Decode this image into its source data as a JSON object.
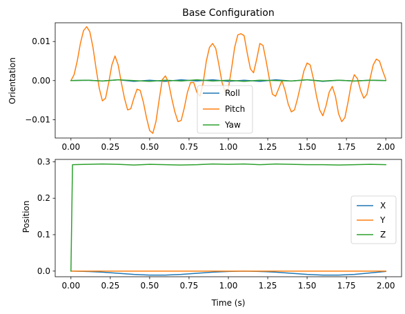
{
  "chart_data": [
    {
      "type": "line",
      "title": "Base Configuration",
      "xlabel": "",
      "ylabel": "Orientation",
      "xlim": [
        -0.1,
        2.1
      ],
      "ylim": [
        -0.0147,
        0.0148
      ],
      "xticks": [
        0.0,
        0.25,
        0.5,
        0.75,
        1.0,
        1.25,
        1.5,
        1.75,
        2.0
      ],
      "xtick_labels": [
        "0.00",
        "0.25",
        "0.50",
        "0.75",
        "1.00",
        "1.25",
        "1.50",
        "1.75",
        "2.00"
      ],
      "yticks": [
        -0.01,
        0.0,
        0.01
      ],
      "ytick_labels": [
        "−0.01",
        "0.00",
        "0.01"
      ],
      "legend": "lower-center",
      "grid": false,
      "series": [
        {
          "name": "Roll",
          "color": "#1f77b4",
          "x": [
            0.0,
            0.1,
            0.2,
            0.3,
            0.4,
            0.5,
            0.6,
            0.7,
            0.8,
            0.9,
            1.0,
            1.1,
            1.2,
            1.3,
            1.4,
            1.5,
            1.6,
            1.7,
            1.8,
            1.9,
            2.0
          ],
          "y": [
            0.0,
            0.0001,
            -0.0001,
            0.0002,
            -0.0002,
            0.0001,
            -0.0002,
            0.0002,
            -0.0001,
            0.0002,
            -0.0002,
            0.0001,
            -0.0002,
            0.0002,
            -0.0001,
            0.0002,
            -0.0002,
            0.0001,
            -0.0001,
            0.0001,
            0.0
          ]
        },
        {
          "name": "Pitch",
          "color": "#ff7f0e",
          "x": [
            0.0,
            0.02,
            0.04,
            0.06,
            0.08,
            0.1,
            0.12,
            0.14,
            0.16,
            0.18,
            0.2,
            0.22,
            0.24,
            0.26,
            0.28,
            0.3,
            0.32,
            0.34,
            0.36,
            0.38,
            0.4,
            0.42,
            0.44,
            0.46,
            0.48,
            0.5,
            0.52,
            0.54,
            0.56,
            0.58,
            0.6,
            0.62,
            0.64,
            0.66,
            0.68,
            0.7,
            0.72,
            0.74,
            0.76,
            0.78,
            0.8,
            0.82,
            0.84,
            0.86,
            0.88,
            0.9,
            0.92,
            0.94,
            0.96,
            0.98,
            1.0,
            1.02,
            1.04,
            1.06,
            1.08,
            1.1,
            1.12,
            1.14,
            1.16,
            1.18,
            1.2,
            1.22,
            1.24,
            1.26,
            1.28,
            1.3,
            1.32,
            1.34,
            1.36,
            1.38,
            1.4,
            1.42,
            1.44,
            1.46,
            1.48,
            1.5,
            1.52,
            1.54,
            1.56,
            1.58,
            1.6,
            1.62,
            1.64,
            1.66,
            1.68,
            1.7,
            1.72,
            1.74,
            1.76,
            1.78,
            1.8,
            1.82,
            1.84,
            1.86,
            1.88,
            1.9,
            1.92,
            1.94,
            1.96,
            1.98,
            2.0
          ],
          "y": [
            0.0,
            0.0015,
            0.005,
            0.0095,
            0.0128,
            0.0138,
            0.0125,
            0.0085,
            0.003,
            -0.002,
            -0.0052,
            -0.0045,
            -0.0005,
            0.004,
            0.0063,
            0.004,
            -0.0005,
            -0.0045,
            -0.0075,
            -0.0072,
            -0.0045,
            -0.0022,
            -0.0025,
            -0.0055,
            -0.0095,
            -0.0128,
            -0.0135,
            -0.0105,
            -0.005,
            0.0002,
            0.0012,
            -0.0005,
            -0.0045,
            -0.008,
            -0.0105,
            -0.0102,
            -0.007,
            -0.003,
            -0.0005,
            -0.0005,
            -0.003,
            -0.004,
            -0.0005,
            0.005,
            0.0085,
            0.0095,
            0.0082,
            0.004,
            -0.0005,
            -0.003,
            -0.002,
            0.003,
            0.0085,
            0.0117,
            0.012,
            0.0115,
            0.007,
            0.003,
            0.002,
            0.0055,
            0.0095,
            0.009,
            0.005,
            0.0005,
            -0.0035,
            -0.004,
            -0.002,
            0.0,
            -0.0025,
            -0.006,
            -0.008,
            -0.0075,
            -0.0045,
            -0.001,
            0.0025,
            0.0045,
            0.004,
            0.0005,
            -0.004,
            -0.0075,
            -0.009,
            -0.0065,
            -0.003,
            -0.0015,
            -0.004,
            -0.0085,
            -0.0105,
            -0.0095,
            -0.0055,
            -0.001,
            0.0015,
            0.0005,
            -0.0025,
            -0.0045,
            -0.0035,
            0.0005,
            0.004,
            0.0055,
            0.005,
            0.0025,
            0.0003
          ]
        },
        {
          "name": "Yaw",
          "color": "#2ca02c",
          "x": [
            0.0,
            0.1,
            0.2,
            0.3,
            0.4,
            0.5,
            0.6,
            0.7,
            0.8,
            0.9,
            1.0,
            1.1,
            1.2,
            1.3,
            1.4,
            1.5,
            1.6,
            1.7,
            1.8,
            1.9,
            2.0
          ],
          "y": [
            0.0,
            0.0001,
            -0.0001,
            0.0002,
            0.0,
            -0.0002,
            0.0001,
            -0.0001,
            0.0002,
            -0.0001,
            0.0001,
            -0.0002,
            0.0001,
            0.0,
            -0.0001,
            0.0002,
            -0.0001,
            0.0001,
            -0.0001,
            0.0001,
            0.0
          ]
        }
      ]
    },
    {
      "type": "line",
      "title": "",
      "xlabel": "Time (s)",
      "ylabel": "Position",
      "xlim": [
        -0.1,
        2.1
      ],
      "ylim": [
        -0.0155,
        0.3065
      ],
      "xticks": [
        0.0,
        0.25,
        0.5,
        0.75,
        1.0,
        1.25,
        1.5,
        1.75,
        2.0
      ],
      "xtick_labels": [
        "0.00",
        "0.25",
        "0.50",
        "0.75",
        "1.00",
        "1.25",
        "1.50",
        "1.75",
        "2.00"
      ],
      "yticks": [
        0.0,
        0.1,
        0.2,
        0.3
      ],
      "ytick_labels": [
        "0.0",
        "0.1",
        "0.2",
        "0.3"
      ],
      "legend": "center-right",
      "grid": false,
      "series": [
        {
          "name": "X",
          "color": "#1f77b4",
          "x": [
            0.0,
            0.1,
            0.2,
            0.3,
            0.4,
            0.5,
            0.6,
            0.7,
            0.8,
            0.9,
            1.0,
            1.1,
            1.2,
            1.3,
            1.4,
            1.5,
            1.6,
            1.7,
            1.8,
            1.9,
            2.0
          ],
          "y": [
            0.0,
            -0.001,
            -0.003,
            -0.006,
            -0.009,
            -0.011,
            -0.011,
            -0.009,
            -0.006,
            -0.003,
            -0.001,
            0.0,
            -0.001,
            -0.003,
            -0.006,
            -0.009,
            -0.011,
            -0.011,
            -0.009,
            -0.005,
            -0.001
          ]
        },
        {
          "name": "Y",
          "color": "#ff7f0e",
          "x": [
            0.0,
            0.1,
            0.2,
            0.3,
            0.4,
            0.5,
            0.6,
            0.7,
            0.8,
            0.9,
            1.0,
            1.1,
            1.2,
            1.3,
            1.4,
            1.5,
            1.6,
            1.7,
            1.8,
            1.9,
            2.0
          ],
          "y": [
            0.0,
            0.0,
            0.0,
            0.0,
            0.0,
            0.0,
            0.0,
            0.0,
            0.0,
            0.0,
            0.0,
            0.0,
            0.0,
            0.0,
            0.0,
            0.0,
            0.0,
            0.0,
            0.0,
            0.0,
            0.0
          ]
        },
        {
          "name": "Z",
          "color": "#2ca02c",
          "x": [
            0.0,
            0.01,
            0.1,
            0.2,
            0.3,
            0.4,
            0.5,
            0.6,
            0.7,
            0.8,
            0.9,
            1.0,
            1.1,
            1.2,
            1.3,
            1.4,
            1.5,
            1.6,
            1.7,
            1.8,
            1.9,
            2.0
          ],
          "y": [
            0.0,
            0.292,
            0.293,
            0.294,
            0.293,
            0.291,
            0.293,
            0.292,
            0.291,
            0.292,
            0.294,
            0.293,
            0.294,
            0.292,
            0.294,
            0.293,
            0.292,
            0.292,
            0.291,
            0.292,
            0.293,
            0.292
          ]
        }
      ]
    }
  ]
}
